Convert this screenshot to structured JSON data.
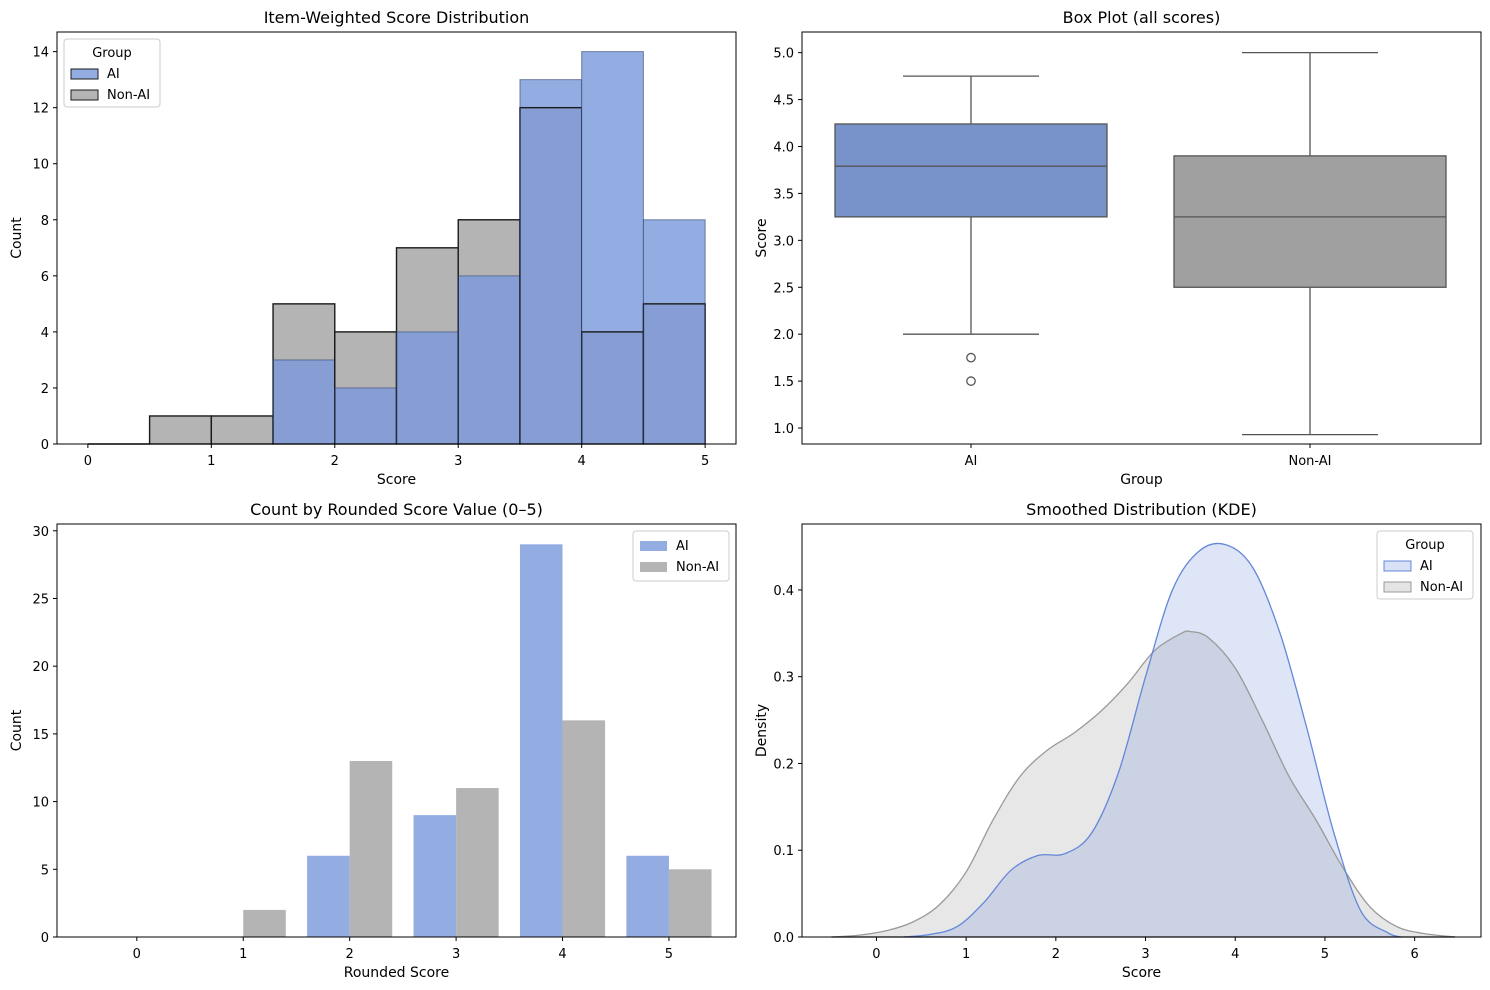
{
  "colors": {
    "ai_fill": "#93ade3",
    "ai_hist_fill": "#93ade3",
    "nonai_fill": "#b4b4b4",
    "overlap_fill": "#869ed3",
    "ai_box": "#7793ca",
    "nonai_box": "#a0a0a0",
    "ai_line": "#6487d8",
    "nonai_line": "#9a9a9a",
    "ai_kde_fill": "#d8e1f5",
    "nonai_kde_fill": "#e4e4e4",
    "overlap_kde_fill": "#c6cee0"
  },
  "chart_data": [
    {
      "type": "bar",
      "subtype": "histogram-overlay",
      "title": "Item-Weighted Score Distribution",
      "xlabel": "Score",
      "ylabel": "Count",
      "xlim": [
        -0.25,
        5.25
      ],
      "ylim": [
        0,
        14.7
      ],
      "xticks": [
        "0",
        "1",
        "2",
        "3",
        "4",
        "5"
      ],
      "yticks": [
        "0",
        "2",
        "4",
        "6",
        "8",
        "10",
        "12",
        "14"
      ],
      "bin_edges": [
        0,
        0.5,
        1,
        1.5,
        2,
        2.5,
        3,
        3.5,
        4,
        4.5,
        5
      ],
      "legend": {
        "title": "Group",
        "position": "top-left",
        "entries": [
          "AI",
          "Non-AI"
        ]
      },
      "series": [
        {
          "name": "AI",
          "values": [
            0,
            0,
            0,
            3,
            2,
            4,
            6,
            13,
            14,
            8
          ]
        },
        {
          "name": "Non-AI",
          "values": [
            0,
            1,
            1,
            5,
            4,
            7,
            8,
            12,
            4,
            5
          ]
        }
      ]
    },
    {
      "type": "box",
      "title": "Box Plot (all scores)",
      "xlabel": "Group",
      "ylabel": "Score",
      "ylim": [
        0.83,
        5.22
      ],
      "yticks": [
        "1.0",
        "1.5",
        "2.0",
        "2.5",
        "3.0",
        "3.5",
        "4.0",
        "4.5",
        "5.0"
      ],
      "categories": [
        "AI",
        "Non-AI"
      ],
      "boxes": [
        {
          "name": "AI",
          "whisker_low": 2.0,
          "q1": 3.25,
          "median": 3.79,
          "q3": 4.24,
          "whisker_high": 4.75,
          "outliers": [
            1.75,
            1.5
          ]
        },
        {
          "name": "Non-AI",
          "whisker_low": 0.93,
          "q1": 2.5,
          "median": 3.25,
          "q3": 3.9,
          "whisker_high": 5.0,
          "outliers": []
        }
      ]
    },
    {
      "type": "bar",
      "title": "Count by Rounded Score Value (0–5)",
      "xlabel": "Rounded Score",
      "ylabel": "Count",
      "ylim": [
        0,
        30.5
      ],
      "categories": [
        "0",
        "1",
        "2",
        "3",
        "4",
        "5"
      ],
      "yticks": [
        "0",
        "5",
        "10",
        "15",
        "20",
        "25",
        "30"
      ],
      "legend": {
        "position": "top-right",
        "entries": [
          "AI",
          "Non-AI"
        ]
      },
      "series": [
        {
          "name": "AI",
          "values": [
            0,
            0,
            6,
            9,
            29,
            6
          ]
        },
        {
          "name": "Non-AI",
          "values": [
            0,
            2,
            13,
            11,
            16,
            5
          ]
        }
      ]
    },
    {
      "type": "area",
      "subtype": "kde",
      "title": "Smoothed Distribution (KDE)",
      "xlabel": "Score",
      "ylabel": "Density",
      "xlim": [
        -0.83,
        6.74
      ],
      "ylim": [
        0,
        0.476
      ],
      "xticks": [
        "0",
        "1",
        "2",
        "3",
        "4",
        "5",
        "6"
      ],
      "yticks": [
        "0.0",
        "0.1",
        "0.2",
        "0.3",
        "0.4"
      ],
      "legend": {
        "title": "Group",
        "position": "top-right",
        "entries": [
          "AI",
          "Non-AI"
        ]
      },
      "series": [
        {
          "name": "AI",
          "x": [
            0.3,
            0.6,
            0.9,
            1.2,
            1.5,
            1.8,
            2.1,
            2.4,
            2.7,
            3.0,
            3.3,
            3.6,
            3.9,
            4.2,
            4.5,
            4.8,
            5.1,
            5.4,
            5.7,
            5.85
          ],
          "y": [
            0.0,
            0.003,
            0.012,
            0.04,
            0.077,
            0.094,
            0.096,
            0.12,
            0.19,
            0.3,
            0.4,
            0.445,
            0.452,
            0.425,
            0.35,
            0.24,
            0.12,
            0.03,
            0.005,
            0.0
          ]
        },
        {
          "name": "Non-AI",
          "x": [
            -0.5,
            -0.2,
            0.1,
            0.4,
            0.7,
            1.0,
            1.3,
            1.6,
            1.9,
            2.2,
            2.5,
            2.8,
            3.1,
            3.4,
            3.5,
            3.7,
            4.0,
            4.3,
            4.6,
            4.9,
            5.2,
            5.5,
            5.8,
            6.1,
            6.45
          ],
          "y": [
            0.0,
            0.002,
            0.007,
            0.017,
            0.037,
            0.075,
            0.135,
            0.185,
            0.215,
            0.235,
            0.26,
            0.292,
            0.33,
            0.35,
            0.352,
            0.345,
            0.31,
            0.25,
            0.185,
            0.135,
            0.08,
            0.035,
            0.012,
            0.004,
            0.0
          ]
        }
      ]
    }
  ]
}
